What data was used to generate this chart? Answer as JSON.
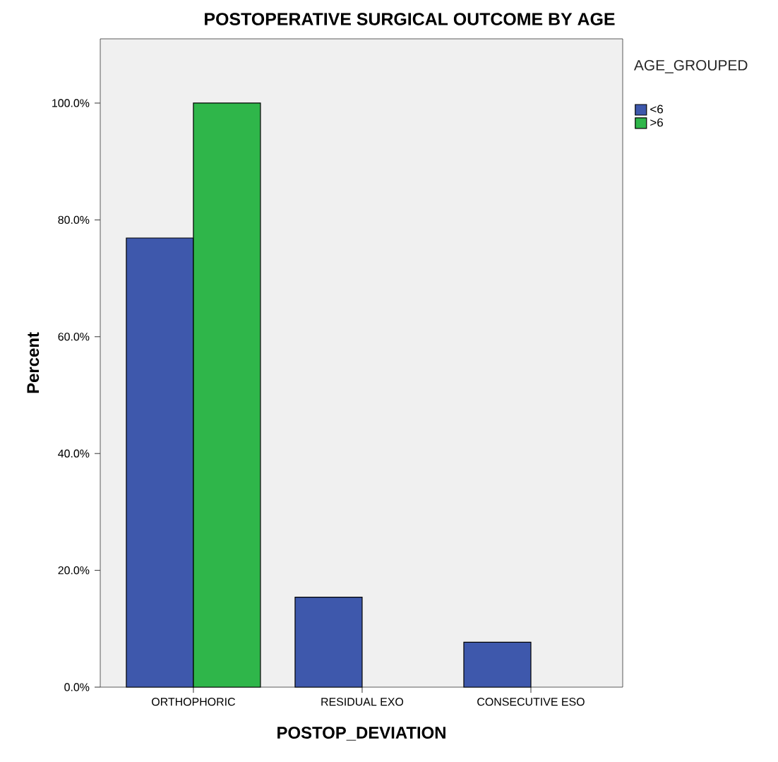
{
  "chart_data": {
    "type": "bar",
    "title": "POSTOPERATIVE SURGICAL OUTCOME BY AGE",
    "xlabel": "POSTOP_DEVIATION",
    "ylabel": "Percent",
    "legend_title": "AGE_GROUPED",
    "categories": [
      "ORTHOPHORIC",
      "RESIDUAL EXO",
      "CONSECUTIVE ESO"
    ],
    "series": [
      {
        "name": "<6",
        "color": "#3e58ac",
        "values": [
          76.9,
          15.4,
          7.7
        ]
      },
      {
        "name": ">6",
        "color": "#2fb64a",
        "values": [
          100,
          null,
          null
        ]
      }
    ],
    "ylim": [
      0,
      111
    ],
    "yticks": [
      {
        "value": 0,
        "label": "0.0%"
      },
      {
        "value": 20,
        "label": "20.0%"
      },
      {
        "value": 40,
        "label": "40.0%"
      },
      {
        "value": 60,
        "label": "60.0%"
      },
      {
        "value": 80,
        "label": "80.0%"
      },
      {
        "value": 100,
        "label": "100.0%"
      }
    ],
    "grid": false,
    "legend": "top right"
  }
}
